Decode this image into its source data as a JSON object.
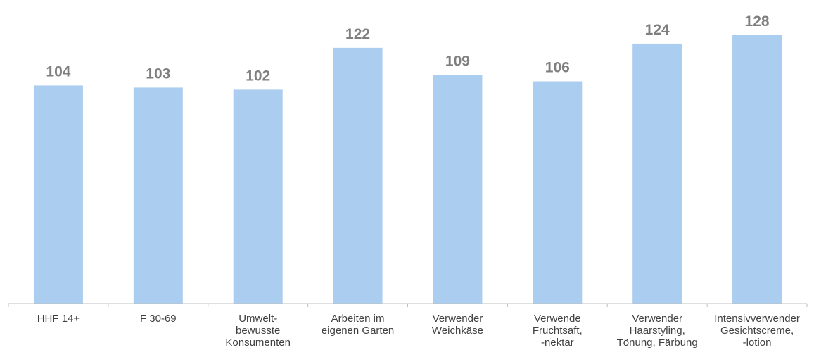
{
  "chart_data": {
    "type": "bar",
    "title": "",
    "xlabel": "",
    "ylabel": "",
    "ylim": [
      0,
      128
    ],
    "grid": false,
    "legend": "none",
    "bar_color": "#abcdef",
    "label_color": "#7f7f7f",
    "categories": [
      [
        "HHF 14+"
      ],
      [
        "F 30-69"
      ],
      [
        "Umwelt-",
        "bewusste",
        "Konsumenten"
      ],
      [
        "Arbeiten im",
        "eigenen Garten"
      ],
      [
        "Verwender",
        "Weichkäse"
      ],
      [
        "Verwende",
        "Fruchtsaft,",
        "-nektar"
      ],
      [
        "Verwender",
        "Haarstyling,",
        "Tönung, Färbung"
      ],
      [
        "Intensivverwender",
        "Gesichtscreme,",
        "-lotion"
      ]
    ],
    "values": [
      104,
      103,
      102,
      122,
      109,
      106,
      124,
      128
    ]
  }
}
